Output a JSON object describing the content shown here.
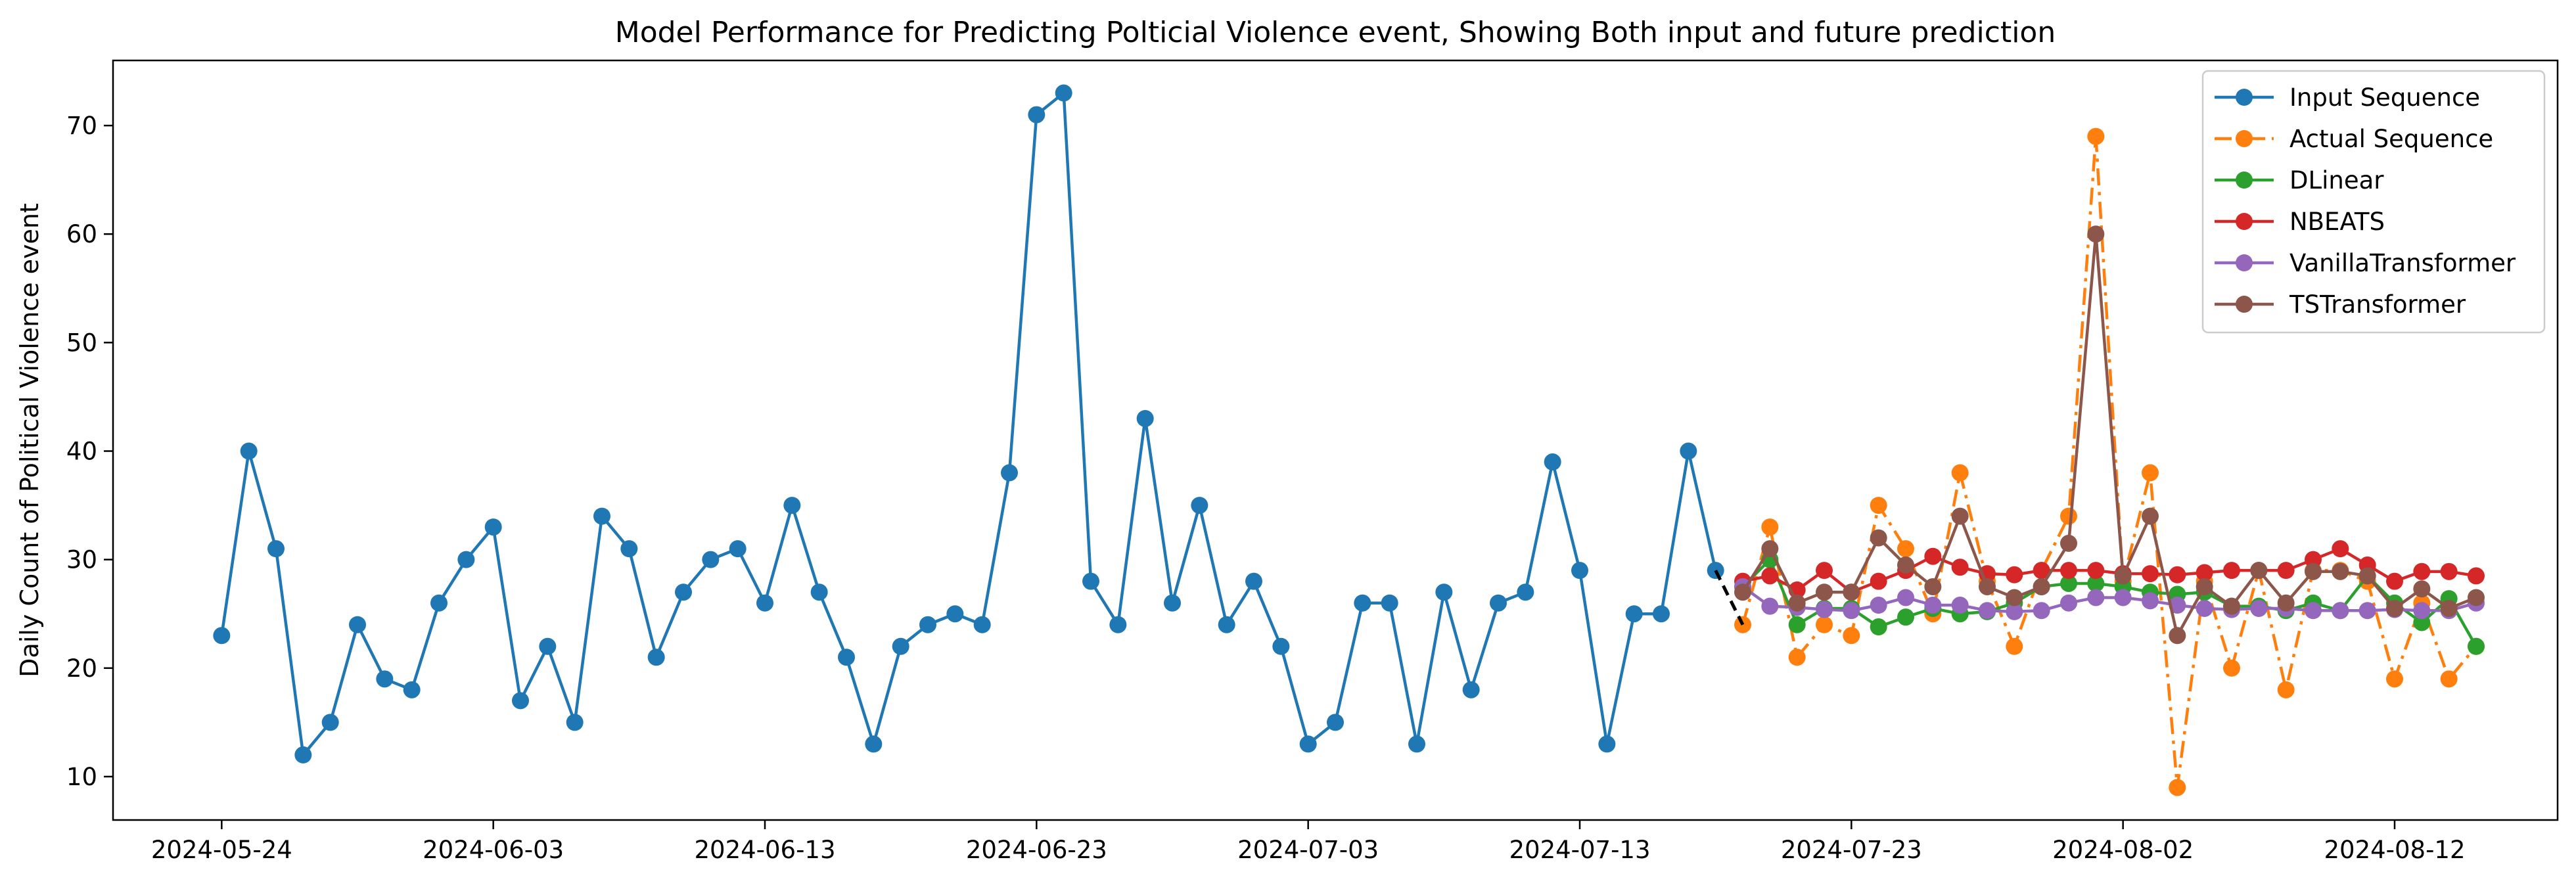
{
  "chart_data": {
    "type": "line",
    "title": "Model Performance for Predicting Polticial Violence event, Showing Both input and future prediction",
    "xlabel": "",
    "ylabel": "Daily Count of Political Violence event",
    "x_start": "2024-05-24",
    "x_tick_labels": [
      "2024-05-24",
      "2024-06-03",
      "2024-06-13",
      "2024-06-23",
      "2024-07-03",
      "2024-07-13",
      "2024-07-23",
      "2024-08-02",
      "2024-08-12"
    ],
    "y_ticks": [
      10,
      20,
      30,
      40,
      50,
      60,
      70
    ],
    "xlim": [
      "2024-05-20",
      "2024-08-18"
    ],
    "ylim": [
      6,
      76
    ],
    "grid": false,
    "legend_position": "top-right",
    "series": [
      {
        "name": "Input Sequence",
        "color": "#1f77b4",
        "dash": "solid",
        "start": "2024-05-24",
        "values": [
          23,
          40,
          31,
          12,
          15,
          24,
          19,
          18,
          26,
          30,
          33,
          17,
          22,
          15,
          34,
          31,
          21,
          27,
          30,
          31,
          26,
          35,
          27,
          21,
          13,
          22,
          24,
          25,
          24,
          38,
          71,
          73,
          28,
          24,
          43,
          26,
          35,
          24,
          28,
          22,
          13,
          15,
          26,
          26,
          13,
          27,
          18,
          26,
          27,
          39,
          29,
          13,
          25,
          25,
          40,
          29
        ]
      },
      {
        "name": "Actual Sequence",
        "color": "#ff7f0e",
        "dash": "dashdot",
        "start": "2024-07-19",
        "values": [
          24,
          33,
          21,
          24,
          23,
          35,
          31,
          25,
          38,
          28,
          22,
          29,
          34,
          69,
          28,
          38,
          9,
          28,
          20,
          29,
          18,
          29,
          29,
          28,
          19,
          26,
          19,
          22
        ]
      },
      {
        "name": "DLinear",
        "color": "#2ca02c",
        "dash": "solid",
        "start": "2024-07-19",
        "values": [
          27.5,
          30,
          24,
          25.5,
          25.5,
          23.8,
          24.7,
          25.5,
          25,
          25.2,
          26,
          27.5,
          27.8,
          27.8,
          27.5,
          27,
          26.8,
          27,
          25.7,
          25.7,
          25.3,
          26,
          25.3,
          28.5,
          26,
          24.2,
          26.4,
          22
        ]
      },
      {
        "name": "NBEATS",
        "color": "#d62728",
        "dash": "solid",
        "start": "2024-07-19",
        "values": [
          28,
          28.5,
          27.2,
          29,
          27,
          28,
          29,
          30.3,
          29.3,
          28.7,
          28.6,
          29,
          29,
          29,
          28.7,
          28.7,
          28.6,
          28.8,
          29,
          29,
          29,
          30,
          31,
          29.5,
          28,
          28.9,
          28.9,
          28.5
        ]
      },
      {
        "name": "VanillaTransformer",
        "color": "#9467bd",
        "dash": "solid",
        "start": "2024-07-19",
        "values": [
          27.5,
          25.7,
          25.6,
          25.4,
          25.3,
          25.8,
          26.5,
          25.8,
          25.8,
          25.3,
          25.2,
          25.3,
          26,
          26.5,
          26.5,
          26.2,
          25.8,
          25.5,
          25.4,
          25.5,
          25.5,
          25.3,
          25.3,
          25.3,
          25.4,
          25.3,
          25.3,
          26
        ]
      },
      {
        "name": "TSTransformer",
        "color": "#8c564b",
        "dash": "solid",
        "start": "2024-07-19",
        "values": [
          27,
          31,
          26,
          27,
          27,
          32,
          29.5,
          27.5,
          34,
          27.5,
          26.5,
          27.5,
          31.5,
          60,
          28.5,
          34,
          23,
          27.5,
          25.7,
          29,
          26,
          28.9,
          28.9,
          28.5,
          25.5,
          27.3,
          25.5,
          26.5
        ]
      },
      {
        "name": "",
        "color": "#000000",
        "dash": "dashed",
        "start": "2024-07-18",
        "values": [
          29,
          24
        ]
      }
    ]
  }
}
